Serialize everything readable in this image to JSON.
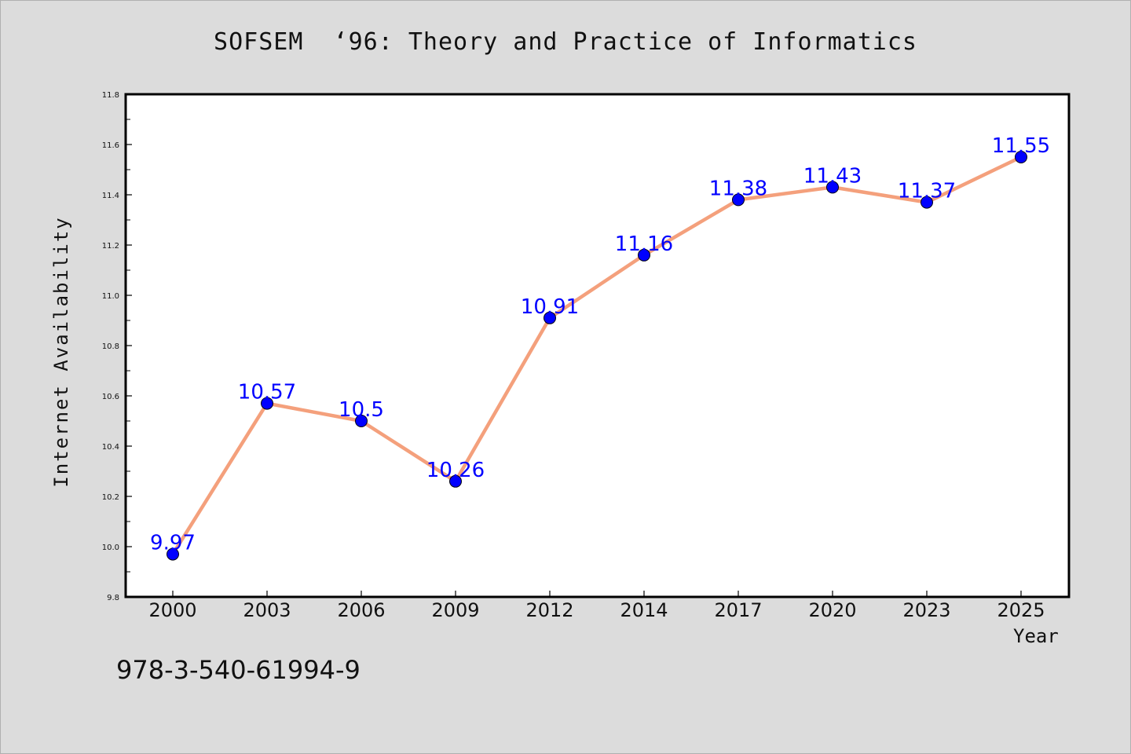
{
  "chart_data": {
    "type": "line",
    "title": "SOFSEM  ‘96: Theory and Practice of Informatics",
    "xlabel": "Year",
    "ylabel": "Internet Availability",
    "categories": [
      "2000",
      "2003",
      "2006",
      "2009",
      "2012",
      "2014",
      "2017",
      "2020",
      "2023",
      "2025"
    ],
    "series": [
      {
        "values": [
          9.97,
          10.57,
          10.5,
          10.26,
          10.91,
          11.16,
          11.38,
          11.43,
          11.37,
          11.55
        ],
        "data_labels": [
          "9.97",
          "10.57",
          "10.5",
          "10.26",
          "10.91",
          "11.16",
          "11.38",
          "11.43",
          "11.37",
          "11.55"
        ]
      }
    ],
    "ylim": [
      9.8,
      11.8
    ],
    "yticks": [
      "9.8",
      "10.0",
      "10.2",
      "10.4",
      "10.6",
      "10.8",
      "11.0",
      "11.2",
      "11.4",
      "11.6",
      "11.8"
    ],
    "grid": false,
    "colors": {
      "line": "#f4a07c",
      "marker": "#0000ff",
      "label": "#0000ff",
      "background": "#dcdcdc",
      "plot_area": "#ffffff"
    }
  },
  "footnote": "978-3-540-61994-9"
}
